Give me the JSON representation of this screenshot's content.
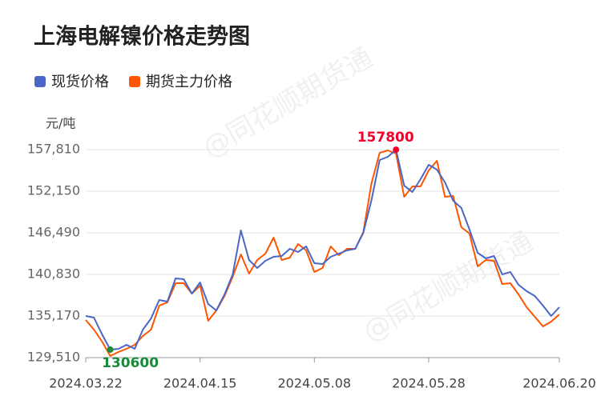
{
  "chart_data": {
    "type": "line",
    "title": "上海电解镍价格走势图",
    "y_label": "元/吨",
    "watermark": "@同花顺期货通",
    "categories": [
      "2024.03.22",
      null,
      null,
      null,
      null,
      null,
      null,
      null,
      null,
      null,
      null,
      null,
      null,
      null,
      "2024.04.15",
      null,
      null,
      null,
      null,
      null,
      null,
      null,
      null,
      null,
      null,
      null,
      null,
      null,
      "2024.05.08",
      null,
      null,
      null,
      null,
      null,
      null,
      null,
      null,
      null,
      null,
      null,
      null,
      null,
      "2024.05.28",
      null,
      null,
      null,
      null,
      null,
      null,
      null,
      null,
      null,
      null,
      null,
      null,
      null,
      null,
      null,
      "2024.06.20"
    ],
    "series": [
      {
        "name": "现货价格",
        "color": "#4a66c6",
        "values": [
          135170,
          134950,
          132670,
          130600,
          130700,
          131250,
          130710,
          133320,
          134840,
          137350,
          137130,
          140290,
          140180,
          138220,
          139740,
          136800,
          135930,
          138110,
          140830,
          146820,
          142790,
          141700,
          142680,
          143230,
          143330,
          144310,
          143880,
          144640,
          142350,
          142250,
          143230,
          143660,
          144100,
          144310,
          146490,
          150950,
          156400,
          156830,
          157800,
          152910,
          152040,
          153780,
          155740,
          155090,
          153350,
          150850,
          149870,
          146930,
          143770,
          143010,
          143330,
          140830,
          141160,
          139420,
          138550,
          137890,
          136590,
          135170,
          136370
        ]
      },
      {
        "name": "期货主力价格",
        "color": "#ff5500",
        "values": [
          134630,
          133320,
          131690,
          129730,
          130270,
          130710,
          131250,
          132450,
          133320,
          136590,
          137020,
          139630,
          139630,
          138220,
          139310,
          134520,
          135930,
          137890,
          140500,
          143550,
          140940,
          142790,
          143660,
          145840,
          142790,
          143120,
          144970,
          144100,
          141160,
          141700,
          144640,
          143440,
          144310,
          144310,
          146600,
          153240,
          157380,
          157700,
          157270,
          151390,
          152800,
          152800,
          154980,
          156290,
          151390,
          151500,
          147250,
          146380,
          141920,
          142790,
          142680,
          139520,
          139630,
          138110,
          136370,
          135060,
          133760,
          134410,
          135390
        ]
      }
    ],
    "ylim": [
      129510,
      157810
    ],
    "yticks": [
      {
        "value": 129510,
        "label": "129,510"
      },
      {
        "value": 135170,
        "label": "135,170"
      },
      {
        "value": 140830,
        "label": "140,830"
      },
      {
        "value": 146490,
        "label": "146,490"
      },
      {
        "value": 152150,
        "label": "152,150"
      },
      {
        "value": 157810,
        "label": "157,810"
      }
    ],
    "grid": true,
    "extremes": {
      "max_color": "#f5002a",
      "min_color": "#1a8a3a"
    }
  }
}
